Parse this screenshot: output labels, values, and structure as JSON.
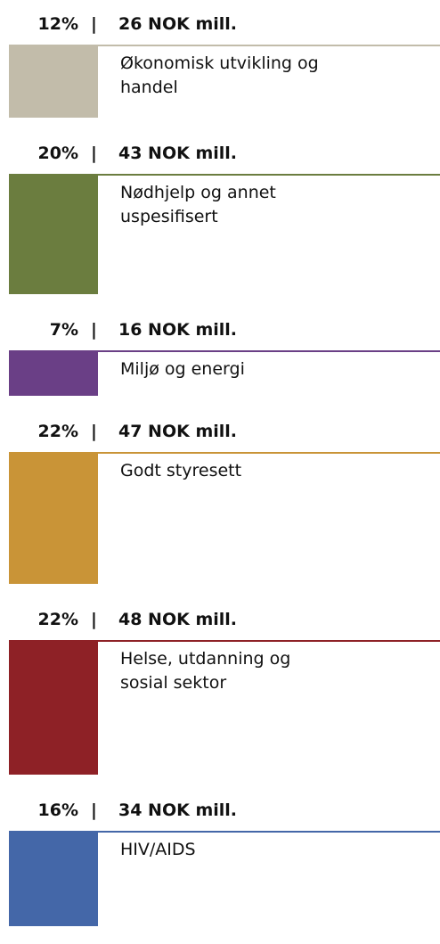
{
  "chart_data": {
    "type": "bar",
    "categories": [
      "Økonomisk utvikling og handel",
      "Nødhjelp og annet uspesifisert",
      "Miljø og energi",
      "Godt styresett",
      "Helse, utdanning og sosial sektor",
      "HIV/AIDS"
    ],
    "values": [
      12,
      20,
      7,
      22,
      22,
      16
    ],
    "value_labels": [
      "12%",
      "20%",
      "7%",
      "22%",
      "22%",
      "16%"
    ],
    "amounts": [
      26,
      43,
      16,
      47,
      48,
      34
    ],
    "amount_labels": [
      "26 NOK mill.",
      "43 NOK mill.",
      "16 NOK mill.",
      "47 NOK mill.",
      "48 NOK mill.",
      "34 NOK mill."
    ],
    "separator": "|",
    "colors": [
      "#c2bcaa",
      "#6b7d3f",
      "#6a3f86",
      "#c99437",
      "#8e2126",
      "#4467a8"
    ]
  }
}
